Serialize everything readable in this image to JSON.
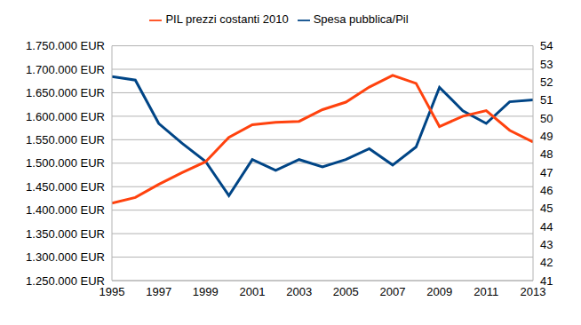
{
  "chart_data": {
    "type": "line",
    "x": [
      1995,
      1996,
      1997,
      1998,
      1999,
      2000,
      2001,
      2002,
      2003,
      2004,
      2005,
      2006,
      2007,
      2008,
      2009,
      2010,
      2011,
      2012,
      2013
    ],
    "series": [
      {
        "name": "Spesa pubblica/Pil",
        "color": "#004586",
        "axis": "y2",
        "values": [
          52.3,
          52.1,
          49.7,
          48.6,
          47.6,
          45.7,
          47.7,
          47.1,
          47.7,
          47.3,
          47.7,
          48.3,
          47.4,
          48.4,
          51.7,
          50.4,
          49.7,
          50.9,
          51.0
        ]
      },
      {
        "name": "PIL prezzi costanti 2010",
        "color": "#ff420e",
        "values": [
          1415000,
          1427000,
          1455000,
          1480000,
          1503000,
          1555000,
          1582000,
          1587000,
          1589000,
          1614000,
          1630000,
          1662000,
          1687000,
          1670000,
          1578000,
          1600000,
          1612000,
          1570000,
          1545000
        ]
      }
    ],
    "xlim": [
      1995,
      2013
    ],
    "xticks": [
      1995,
      1997,
      1999,
      2001,
      2003,
      2005,
      2007,
      2009,
      2011,
      2013
    ],
    "ylim": [
      1250000,
      1750000
    ],
    "yticks": [
      {
        "value": 1250000,
        "label": "1.250.000 EUR"
      },
      {
        "value": 1300000,
        "label": "1.300.000 EUR"
      },
      {
        "value": 1350000,
        "label": "1.350.000 EUR"
      },
      {
        "value": 1400000,
        "label": "1.400.000 EUR"
      },
      {
        "value": 1450000,
        "label": "1.450.000 EUR"
      },
      {
        "value": 1500000,
        "label": "1.500.000 EUR"
      },
      {
        "value": 1550000,
        "label": "1.550.000 EUR"
      },
      {
        "value": 1600000,
        "label": "1.600.000 EUR"
      },
      {
        "value": 1650000,
        "label": "1.650.000 EUR"
      },
      {
        "value": 1700000,
        "label": "1.700.000 EUR"
      },
      {
        "value": 1750000,
        "label": "1.750.000 EUR"
      }
    ],
    "y2lim": [
      41,
      54
    ],
    "y2ticks": [
      41,
      42,
      43,
      44,
      45,
      46,
      47,
      48,
      49,
      50,
      51,
      52,
      53,
      54
    ],
    "grid": true,
    "legend": "top"
  }
}
